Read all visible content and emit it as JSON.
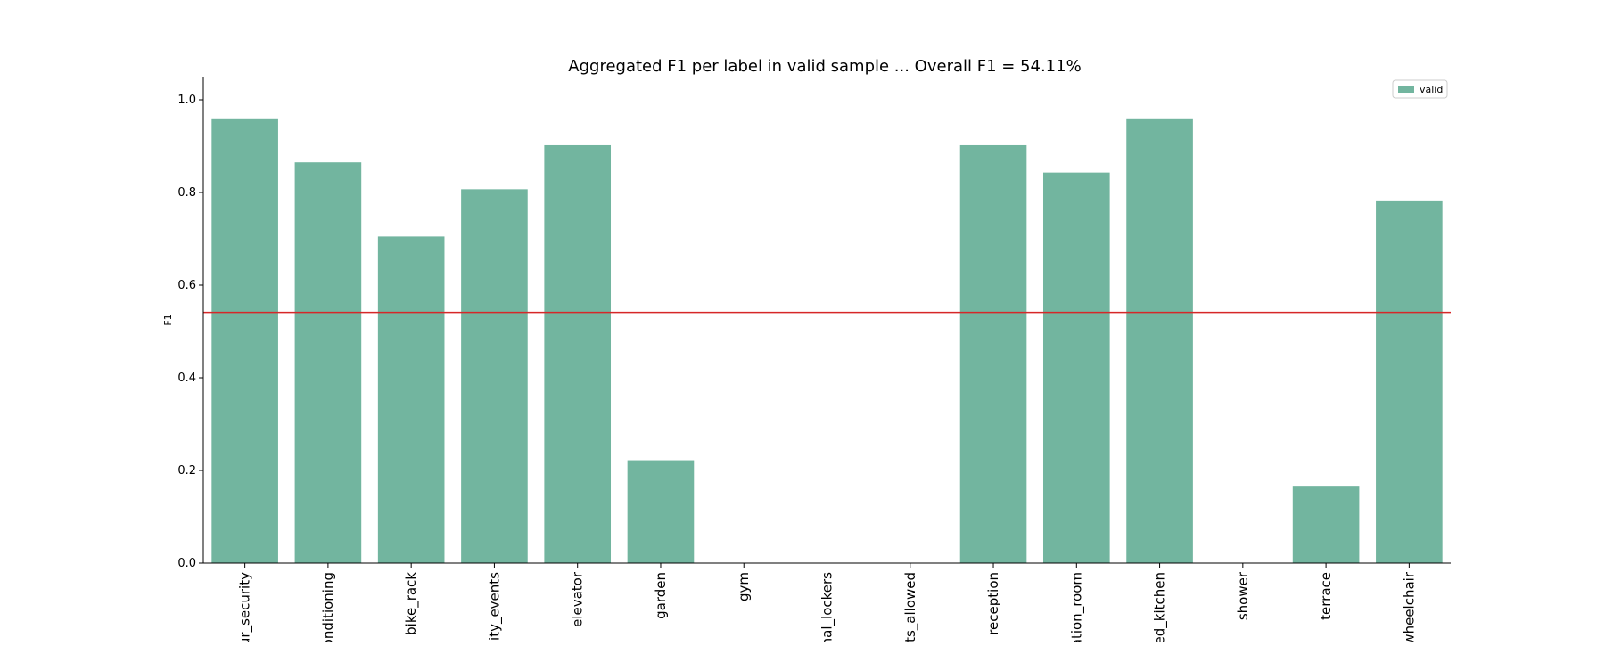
{
  "chart_data": {
    "type": "bar",
    "title": "Aggregated F1 per label in valid sample ... Overall F1 = 54.11%",
    "xlabel": "",
    "ylabel": "F1",
    "ylim": [
      0,
      1.05
    ],
    "yticks": [
      "0.0",
      "0.2",
      "0.4",
      "0.6",
      "0.8",
      "1.0"
    ],
    "categories": [
      "ur_security",
      "onditioning",
      "bike_rack",
      "nity_events",
      "elevator",
      "garden",
      "gym",
      "nal_lockers",
      "ts_allowed",
      "reception",
      "ation_room",
      "ed_kitchen",
      "shower",
      "terrace",
      "wheelchair"
    ],
    "series": [
      {
        "name": "valid",
        "color": "#72b59f",
        "values": [
          0.96,
          0.865,
          0.705,
          0.807,
          0.902,
          0.222,
          0.0,
          0.0,
          0.0,
          0.902,
          0.843,
          0.96,
          0.0,
          0.167,
          0.781
        ]
      }
    ],
    "reference_line": {
      "value": 0.5411,
      "color": "#d62728"
    },
    "legend": {
      "position": "top-right"
    },
    "grid": false
  }
}
